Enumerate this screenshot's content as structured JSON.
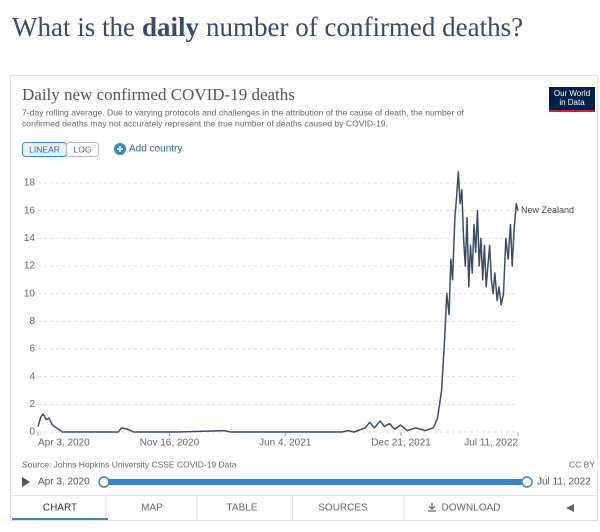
{
  "heading": {
    "before": "What is the",
    "emphasis": "daily",
    "after": "number of confirmed deaths?"
  },
  "logo": {
    "line1": "Our World",
    "line2": "in Data"
  },
  "controls": {
    "linear": "LINEAR",
    "log": "LOG",
    "add_country": "Add country"
  },
  "timeline": {
    "start": "Apr 3, 2020",
    "end": "Jul 11, 2022"
  },
  "license": "CC BY",
  "tabs": [
    "CHART",
    "MAP",
    "TABLE",
    "SOURCES",
    "DOWNLOAD"
  ],
  "chart_data": {
    "type": "line",
    "title": "Daily new confirmed COVID-19 deaths",
    "subtitle": [
      "7-day rolling average. Due to varying protocols and challenges in the attribution of the cause of death, the number of",
      "confirmed deaths may not accurately represent the true number of deaths caused by COVID-19."
    ],
    "source": "Source: Johns Hopkins University CSSE COVID-19 Data",
    "log_scale": false,
    "grid": true,
    "x": [
      "2020-04-03",
      "2020-04-08",
      "2020-04-12",
      "2020-04-17",
      "2020-04-22",
      "2020-04-28",
      "2020-05-05",
      "2020-05-15",
      "2020-06-15",
      "2020-08-20",
      "2020-08-25",
      "2020-09-05",
      "2020-09-15",
      "2020-12-01",
      "2021-02-20",
      "2021-03-01",
      "2021-09-10",
      "2021-09-20",
      "2021-10-01",
      "2021-10-20",
      "2021-10-28",
      "2021-11-05",
      "2021-11-15",
      "2021-11-22",
      "2021-12-01",
      "2021-12-10",
      "2021-12-20",
      "2022-01-01",
      "2022-01-15",
      "2022-02-01",
      "2022-02-15",
      "2022-02-22",
      "2022-03-01",
      "2022-03-06",
      "2022-03-10",
      "2022-03-14",
      "2022-03-17",
      "2022-03-20",
      "2022-03-24",
      "2022-03-27",
      "2022-03-30",
      "2022-04-02",
      "2022-04-05",
      "2022-04-08",
      "2022-04-11",
      "2022-04-14",
      "2022-04-17",
      "2022-04-20",
      "2022-04-23",
      "2022-04-26",
      "2022-04-29",
      "2022-05-02",
      "2022-05-05",
      "2022-05-08",
      "2022-05-11",
      "2022-05-14",
      "2022-05-17",
      "2022-05-20",
      "2022-05-23",
      "2022-05-26",
      "2022-05-29",
      "2022-06-01",
      "2022-06-05",
      "2022-06-08",
      "2022-06-12",
      "2022-06-16",
      "2022-06-20",
      "2022-06-24",
      "2022-06-28",
      "2022-07-01",
      "2022-07-04",
      "2022-07-08",
      "2022-07-11"
    ],
    "series": [
      {
        "name": "New Zealand",
        "color": "#3c4e66",
        "values": [
          0.4,
          1.1,
          1.3,
          0.9,
          1.0,
          0.5,
          0.3,
          0,
          0,
          0,
          0.3,
          0.2,
          0,
          0,
          0.1,
          0,
          0,
          0.1,
          0,
          0.3,
          0.7,
          0.3,
          0.8,
          0.4,
          0.6,
          0.2,
          0.5,
          0.1,
          0.3,
          0.1,
          0.3,
          1.0,
          3.0,
          6.5,
          10.0,
          8.5,
          12.5,
          11.0,
          15.5,
          17.0,
          18.8,
          16.5,
          17.5,
          14.0,
          12.0,
          15.5,
          10.5,
          13.5,
          11.5,
          15.0,
          13.0,
          16.0,
          12.0,
          14.0,
          11.0,
          13.5,
          10.5,
          12.0,
          13.5,
          11.0,
          10.0,
          11.5,
          9.5,
          10.5,
          9.2,
          10.0,
          14.0,
          12.5,
          15.0,
          12.0,
          14.5,
          16.5,
          16.0
        ]
      }
    ],
    "xlim": [
      "2020-04-03",
      "2022-07-11"
    ],
    "xticks": [
      {
        "value": "2020-04-03",
        "label": "Apr 3, 2020"
      },
      {
        "value": "2020-11-16",
        "label": "Nov 16, 2020"
      },
      {
        "value": "2021-06-04",
        "label": "Jun 4, 2021"
      },
      {
        "value": "2021-12-21",
        "label": "Dec 21, 2021"
      },
      {
        "value": "2022-07-11",
        "label": "Jul 11, 2022"
      }
    ],
    "ylim": [
      0,
      18
    ],
    "yticks": [
      0,
      2,
      4,
      6,
      8,
      10,
      12,
      14,
      16,
      18
    ]
  }
}
